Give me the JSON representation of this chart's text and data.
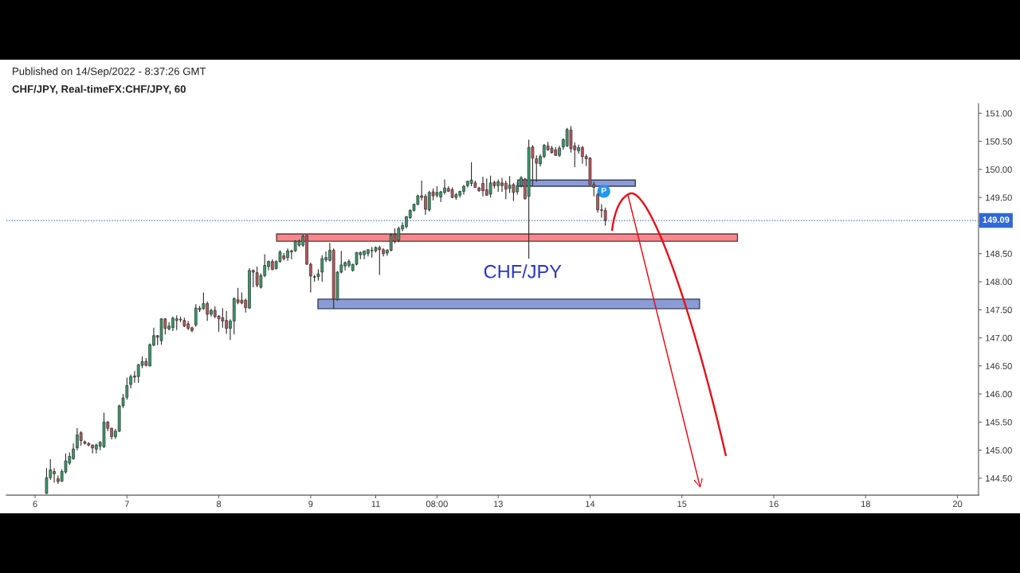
{
  "chart_data": {
    "type": "candlestick",
    "title": "CHF/JPY, Real-timeFX:CHF/JPY, 60",
    "subtitle": "Published on 14/Sep/2022 - 8:37:26 GMT",
    "categories": [
      null,
      null,
      null,
      null,
      null,
      null,
      null,
      "6",
      null,
      null,
      null,
      null,
      null,
      null,
      null,
      null,
      null,
      null,
      null,
      null,
      null,
      null,
      null,
      null,
      null,
      null,
      null,
      null,
      null,
      null,
      null,
      "7",
      null,
      null,
      null,
      null,
      null,
      null,
      null,
      null,
      null,
      null,
      null,
      null,
      null,
      null,
      null,
      null,
      null,
      null,
      null,
      null,
      null,
      null,
      null,
      "8",
      null,
      null,
      null,
      null,
      null,
      null,
      null,
      null,
      null,
      null,
      null,
      null,
      null,
      null,
      null,
      null,
      null,
      null,
      null,
      null,
      null,
      null,
      null,
      "9",
      null,
      null,
      null,
      null,
      null,
      null,
      null,
      null,
      null,
      null,
      null,
      null,
      null,
      null,
      null,
      null,
      "11",
      null,
      null,
      null,
      null,
      null,
      null,
      null,
      null,
      null,
      null,
      null,
      null,
      null,
      null,
      null,
      "08:00",
      null,
      null,
      null,
      null,
      null,
      null,
      null,
      null,
      null,
      null,
      null,
      null,
      null,
      null,
      null,
      "13",
      null,
      null,
      null,
      null,
      null,
      null,
      null,
      null,
      null,
      null,
      null,
      null,
      null,
      null,
      null,
      null,
      null,
      null,
      null,
      null,
      null,
      null,
      null,
      "14",
      null,
      null,
      null,
      null,
      null,
      null,
      null,
      null,
      null,
      null,
      null,
      null,
      null,
      null,
      null,
      null,
      null,
      null,
      null,
      null,
      null,
      null,
      null,
      "15",
      null,
      null,
      null,
      null,
      null,
      null,
      null,
      null,
      null,
      null,
      null,
      null,
      null,
      null,
      null,
      null,
      null,
      null,
      null,
      null,
      null,
      null,
      null,
      "16",
      null,
      null,
      null,
      null,
      null,
      null,
      null,
      null,
      null,
      null,
      null,
      null,
      null,
      null,
      null,
      null,
      null,
      null,
      null,
      null,
      null,
      null,
      null,
      "18",
      null,
      null,
      null,
      null,
      null,
      null,
      null,
      null,
      null,
      null,
      null,
      null,
      null,
      null,
      null,
      null,
      null,
      null,
      null,
      null,
      null,
      null,
      null,
      "20",
      null,
      null,
      null,
      null,
      null
    ],
    "ohlc": [
      null,
      null,
      null,
      null,
      null,
      null,
      null,
      null,
      null,
      null,
      [
        144.23,
        144.68,
        144.22,
        144.51
      ],
      [
        144.51,
        144.84,
        144.47,
        144.65
      ],
      [
        144.62,
        144.68,
        144.42,
        144.58
      ],
      [
        144.49,
        144.55,
        144.4,
        144.44
      ],
      [
        144.45,
        144.66,
        144.43,
        144.62
      ],
      [
        144.61,
        144.94,
        144.58,
        144.81
      ],
      [
        144.77,
        144.96,
        144.74,
        144.89
      ],
      [
        144.85,
        145.12,
        144.83,
        145.02
      ],
      [
        145.04,
        145.39,
        145.0,
        145.27
      ],
      [
        145.31,
        145.34,
        145.08,
        145.17
      ],
      [
        145.15,
        145.17,
        145.1,
        145.12
      ],
      [
        145.12,
        145.14,
        145.07,
        145.09
      ],
      [
        145.09,
        145.1,
        144.94,
        145.04
      ],
      [
        145.02,
        145.12,
        144.94,
        145.09
      ],
      [
        145.07,
        145.16,
        145.0,
        145.14
      ],
      [
        145.06,
        145.67,
        145.04,
        145.5
      ],
      [
        145.5,
        145.52,
        145.34,
        145.39
      ],
      [
        145.39,
        145.4,
        145.19,
        145.24
      ],
      [
        145.24,
        145.38,
        145.2,
        145.34
      ],
      [
        145.34,
        145.81,
        145.32,
        145.79
      ],
      [
        145.79,
        146.0,
        145.75,
        145.93
      ],
      [
        145.94,
        146.29,
        145.9,
        146.15
      ],
      [
        146.17,
        146.35,
        146.1,
        146.31
      ],
      [
        146.3,
        146.41,
        146.2,
        146.32
      ],
      [
        146.31,
        146.54,
        146.2,
        146.52
      ],
      [
        146.51,
        146.67,
        146.46,
        146.58
      ],
      [
        146.58,
        146.64,
        146.49,
        146.51
      ],
      [
        146.5,
        146.9,
        146.49,
        146.88
      ],
      [
        146.87,
        147.18,
        146.85,
        147.04
      ],
      [
        147.04,
        147.05,
        146.87,
        147.01
      ],
      [
        146.95,
        147.35,
        146.88,
        147.34
      ],
      [
        147.34,
        147.35,
        147.06,
        147.17
      ],
      [
        147.16,
        147.28,
        147.13,
        147.21
      ],
      [
        147.18,
        147.38,
        147.12,
        147.35
      ],
      [
        147.34,
        147.4,
        147.14,
        147.31
      ],
      [
        147.32,
        147.38,
        147.28,
        147.33
      ],
      [
        147.31,
        147.36,
        147.19,
        147.21
      ],
      [
        147.25,
        147.3,
        147.14,
        147.17
      ],
      [
        147.18,
        147.2,
        147.1,
        147.13
      ],
      [
        147.23,
        147.6,
        147.2,
        147.53
      ],
      [
        147.53,
        147.57,
        147.46,
        147.5
      ],
      [
        147.52,
        147.81,
        147.5,
        147.61
      ],
      [
        147.61,
        147.65,
        147.3,
        147.42
      ],
      [
        147.42,
        147.52,
        147.38,
        147.49
      ],
      [
        147.49,
        147.56,
        147.35,
        147.38
      ],
      [
        147.39,
        147.4,
        147.11,
        147.34
      ],
      [
        147.36,
        147.53,
        147.18,
        147.3
      ],
      [
        147.31,
        147.48,
        147.07,
        147.17
      ],
      [
        147.17,
        147.33,
        146.96,
        147.3
      ],
      [
        147.3,
        147.72,
        147.06,
        147.7
      ],
      [
        147.68,
        147.89,
        147.6,
        147.63
      ],
      [
        147.67,
        147.81,
        147.6,
        147.62
      ],
      [
        147.67,
        147.7,
        147.45,
        147.54
      ],
      [
        147.53,
        148.24,
        147.52,
        148.2
      ],
      [
        148.2,
        148.22,
        147.9,
        148.17
      ],
      [
        148.16,
        148.27,
        147.9,
        147.94
      ],
      [
        147.9,
        148.15,
        147.88,
        148.11
      ],
      [
        148.11,
        148.49,
        148.08,
        148.29
      ],
      [
        148.27,
        148.38,
        148.2,
        148.36
      ],
      [
        148.36,
        148.4,
        148.2,
        148.22
      ],
      [
        148.23,
        148.38,
        148.22,
        148.36
      ],
      [
        148.36,
        148.56,
        148.34,
        148.53
      ],
      [
        148.46,
        148.51,
        148.38,
        148.41
      ],
      [
        148.43,
        148.59,
        148.37,
        148.55
      ],
      [
        148.53,
        148.57,
        148.4,
        148.55
      ],
      [
        148.55,
        148.74,
        148.53,
        148.72
      ],
      [
        148.65,
        148.75,
        148.62,
        148.72
      ],
      [
        148.65,
        148.84,
        148.62,
        148.81
      ],
      [
        148.82,
        148.84,
        148.3,
        148.31
      ],
      [
        148.31,
        148.34,
        147.81,
        148.1
      ],
      [
        148.08,
        148.12,
        148.0,
        148.09
      ],
      [
        148.09,
        148.22,
        148.02,
        148.14
      ],
      [
        148.17,
        148.47,
        148.0,
        148.41
      ],
      [
        148.39,
        148.54,
        148.35,
        148.43
      ],
      [
        148.38,
        148.69,
        148.36,
        148.56
      ],
      [
        148.56,
        148.59,
        147.52,
        147.69
      ],
      [
        147.68,
        148.19,
        147.66,
        148.17
      ],
      [
        148.17,
        148.55,
        148.15,
        148.3
      ],
      [
        148.28,
        148.36,
        148.2,
        148.34
      ],
      [
        148.29,
        148.4,
        148.25,
        148.36
      ],
      [
        148.2,
        148.32,
        148.18,
        148.31
      ],
      [
        148.31,
        148.53,
        148.29,
        148.52
      ],
      [
        148.48,
        148.54,
        148.4,
        148.52
      ],
      [
        148.48,
        148.55,
        148.4,
        148.55
      ],
      [
        148.5,
        148.58,
        148.45,
        148.57
      ],
      [
        148.55,
        148.62,
        148.43,
        148.56
      ],
      [
        148.55,
        148.63,
        148.52,
        148.61
      ],
      [
        148.61,
        148.64,
        148.12,
        148.57
      ],
      [
        148.57,
        148.6,
        148.45,
        148.5
      ],
      [
        148.51,
        148.58,
        148.46,
        148.56
      ],
      [
        148.56,
        148.86,
        148.54,
        148.83
      ],
      [
        148.84,
        148.95,
        148.68,
        148.72
      ],
      [
        148.74,
        148.98,
        148.7,
        148.95
      ],
      [
        148.94,
        149.06,
        148.9,
        149.0
      ],
      [
        148.98,
        149.17,
        148.95,
        149.16
      ],
      [
        149.14,
        149.29,
        149.12,
        149.27
      ],
      [
        149.27,
        149.39,
        149.25,
        149.38
      ],
      [
        149.38,
        149.55,
        149.36,
        149.53
      ],
      [
        149.53,
        149.8,
        149.45,
        149.5
      ],
      [
        149.52,
        149.56,
        149.19,
        149.29
      ],
      [
        149.28,
        149.62,
        149.25,
        149.59
      ],
      [
        149.6,
        149.66,
        149.45,
        149.53
      ],
      [
        149.54,
        149.7,
        149.5,
        149.59
      ],
      [
        149.51,
        149.62,
        149.42,
        149.6
      ],
      [
        149.59,
        149.82,
        149.55,
        149.67
      ],
      [
        149.66,
        149.7,
        149.6,
        149.61
      ],
      [
        149.64,
        149.68,
        149.49,
        149.5
      ],
      [
        149.5,
        149.58,
        149.46,
        149.55
      ],
      [
        149.54,
        149.62,
        149.5,
        149.61
      ],
      [
        149.61,
        149.72,
        149.55,
        149.7
      ],
      [
        149.71,
        149.8,
        149.68,
        149.79
      ],
      [
        149.75,
        150.13,
        149.7,
        149.81
      ],
      [
        149.76,
        149.8,
        149.68,
        149.68
      ],
      [
        149.67,
        149.69,
        149.6,
        149.62
      ],
      [
        149.75,
        149.87,
        149.52,
        149.62
      ],
      [
        149.64,
        149.84,
        149.53,
        149.54
      ],
      [
        149.56,
        149.89,
        149.5,
        149.76
      ],
      [
        149.77,
        149.8,
        149.66,
        149.71
      ],
      [
        149.71,
        149.82,
        149.6,
        149.78
      ],
      [
        149.76,
        149.85,
        149.6,
        149.71
      ],
      [
        149.75,
        149.8,
        149.47,
        149.65
      ],
      [
        149.66,
        149.88,
        149.58,
        149.72
      ],
      [
        149.73,
        149.76,
        149.44,
        149.59
      ],
      [
        149.6,
        149.78,
        149.55,
        149.71
      ],
      [
        149.71,
        149.88,
        149.68,
        149.85
      ],
      [
        149.83,
        149.85,
        149.46,
        149.48
      ],
      [
        149.52,
        150.53,
        148.41,
        150.39
      ],
      [
        150.4,
        150.43,
        149.7,
        150.2
      ],
      [
        150.19,
        150.25,
        149.78,
        150.11
      ],
      [
        150.1,
        150.27,
        150.05,
        150.23
      ],
      [
        150.23,
        150.45,
        150.2,
        150.43
      ],
      [
        150.42,
        150.49,
        150.33,
        150.35
      ],
      [
        150.38,
        150.42,
        150.28,
        150.3
      ],
      [
        150.35,
        150.4,
        150.24,
        150.25
      ],
      [
        150.25,
        150.42,
        150.22,
        150.38
      ],
      [
        150.4,
        150.55,
        150.35,
        150.53
      ],
      [
        150.42,
        150.74,
        150.4,
        150.71
      ],
      [
        150.7,
        150.77,
        150.3,
        150.37
      ],
      [
        150.42,
        150.48,
        150.04,
        150.35
      ],
      [
        150.33,
        150.44,
        150.28,
        150.39
      ],
      [
        150.39,
        150.42,
        150.1,
        150.23
      ],
      [
        150.23,
        150.27,
        150.06,
        150.19
      ],
      [
        150.2,
        150.22,
        149.72,
        149.73
      ],
      [
        149.73,
        149.78,
        149.52,
        149.68
      ],
      [
        149.55,
        149.58,
        149.23,
        149.28
      ],
      [
        149.28,
        149.38,
        149.14,
        149.27
      ],
      [
        149.27,
        149.32,
        149.0,
        149.09
      ],
      null,
      null,
      null,
      null,
      null,
      null,
      null,
      null,
      null,
      null,
      null,
      null,
      null,
      null,
      null,
      null,
      null,
      null,
      null,
      null,
      null,
      null,
      null,
      null,
      null,
      null,
      null,
      null,
      null,
      null,
      null,
      null,
      null,
      null,
      null,
      null,
      null,
      null,
      null,
      null,
      null,
      null,
      null,
      null,
      null,
      null,
      null,
      null,
      null,
      null,
      null,
      null,
      null,
      null,
      null,
      null,
      null,
      null,
      null,
      null,
      null,
      null,
      null,
      null,
      null,
      null,
      null,
      null,
      null,
      null,
      null,
      null,
      null,
      null,
      null,
      null,
      null,
      null,
      null,
      null,
      null,
      null,
      null,
      null,
      null,
      null,
      null,
      null,
      null,
      null,
      null,
      null,
      null,
      null,
      null,
      null,
      null
    ],
    "colors": [
      null,
      null,
      null,
      null,
      null,
      null,
      null,
      null,
      null,
      null,
      "#3a9a6a",
      "#3a9a6a",
      "#b9575a",
      "#b9575a",
      "#3a9a6a",
      "#3a9a6a",
      "#3a9a6a",
      "#3a9a6a",
      "#3a9a6a",
      "#b9575a",
      "#b9575a",
      "#b9575a",
      "#b9575a",
      "#3a9a6a",
      "#3a9a6a",
      "#3a9a6a",
      "#b9575a",
      "#b9575a",
      "#3a9a6a",
      "#3a9a6a",
      "#3a9a6a",
      "#3a9a6a",
      "#3a9a6a",
      "#3a9a6a",
      "#3a9a6a",
      "#3a9a6a",
      "#b9575a",
      "#3a9a6a",
      "#3a9a6a",
      "#b9575a",
      "#3a9a6a",
      "#b9575a",
      "#3a9a6a",
      "#3a9a6a",
      "#b9575a",
      "#3a9a6a",
      "#b9575a",
      "#b9575a",
      "#b9575a",
      "#3a9a6a",
      "#b9575a",
      "#3a9a6a",
      "#b9575a",
      "#3a9a6a",
      "#b9575a",
      "#b9575a",
      "#b9575a",
      "#b9575a",
      "#3a9a6a",
      "#3a9a6a",
      "#b9575a",
      "#b9575a",
      "#b9575a",
      "#3a9a6a",
      "#b9575a",
      "#b9575a",
      "#3a9a6a",
      "#3a9a6a",
      "#3a9a6a",
      "#b9575a",
      "#3a9a6a",
      "#3a9a6a",
      "#b9575a",
      "#3a9a6a",
      "#3a9a6a",
      "#3a9a6a",
      "#3a9a6a",
      "#3a9a6a",
      "#b9575a",
      "#b9575a",
      "#3a9a6a",
      "#3a9a6a",
      "#3a9a6a",
      "#3a9a6a",
      "#3a9a6a",
      "#b9575a",
      "#3a9a6a",
      "#3a9a6a",
      "#3a9a6a",
      "#3a9a6a",
      "#3a9a6a",
      "#3a9a6a",
      "#3a9a6a",
      "#3a9a6a",
      "#3a9a6a",
      "#3a9a6a",
      "#3a9a6a",
      "#b9575a",
      "#b9575a",
      "#3a9a6a",
      "#3a9a6a",
      "#b9575a",
      "#3a9a6a",
      "#3a9a6a",
      "#3a9a6a",
      "#3a9a6a",
      "#3a9a6a",
      "#3a9a6a",
      "#b9575a",
      "#b9575a",
      "#3a9a6a",
      "#b9575a",
      "#3a9a6a",
      "#3a9a6a",
      "#3a9a6a",
      "#b9575a",
      "#b9575a",
      "#3a9a6a",
      "#3a9a6a",
      "#3a9a6a",
      "#3a9a6a",
      "#3a9a6a",
      "#b9575a",
      "#b9575a",
      "#b9575a",
      "#b9575a",
      "#3a9a6a",
      "#b9575a",
      "#3a9a6a",
      "#b9575a",
      "#b9575a",
      "#3a9a6a",
      "#b9575a",
      "#3a9a6a",
      "#3a9a6a",
      "#b9575a",
      "#3a9a6a",
      "#b9575a",
      "#b9575a",
      "#3a9a6a",
      "#3a9a6a",
      "#b9575a",
      "#b9575a",
      "#b9575a",
      "#3a9a6a",
      "#3a9a6a",
      "#3a9a6a",
      "#b9575a",
      "#b9575a",
      "#3a9a6a",
      "#b9575a",
      "#b9575a",
      "#b9575a",
      "#b9575a",
      "#b9575a",
      "#b9575a",
      "#b9575a",
      null,
      null,
      null,
      null,
      null,
      null,
      null,
      null,
      null,
      null,
      null,
      null,
      null,
      null,
      null,
      null,
      null,
      null,
      null,
      null,
      null,
      null,
      null,
      null,
      null,
      null,
      null,
      null,
      null,
      null,
      null,
      null,
      null,
      null,
      null,
      null,
      null,
      null,
      null,
      null,
      null,
      null,
      null,
      null,
      null,
      null,
      null,
      null,
      null,
      null,
      null,
      null,
      null,
      null,
      null,
      null,
      null,
      null,
      null,
      null,
      null,
      null,
      null,
      null,
      null,
      null,
      null,
      null,
      null,
      null,
      null,
      null,
      null,
      null,
      null,
      null,
      null,
      null,
      null,
      null,
      null,
      null,
      null,
      null,
      null,
      null,
      null,
      null,
      null,
      null,
      null,
      null,
      null,
      null,
      null,
      null,
      null
    ],
    "ylim": [
      144.2,
      151.17
    ],
    "yticks": [
      {
        "value": 144.5,
        "label": "144.50"
      },
      {
        "value": 145,
        "label": "145.00"
      },
      {
        "value": 145.5,
        "label": "145.50"
      },
      {
        "value": 146,
        "label": "146.00"
      },
      {
        "value": 146.5,
        "label": "146.50"
      },
      {
        "value": 147,
        "label": "147.00"
      },
      {
        "value": 147.5,
        "label": "147.50"
      },
      {
        "value": 148,
        "label": "148.00"
      },
      {
        "value": 148.5,
        "label": "148.50"
      },
      {
        "value": 149,
        "label": null
      },
      {
        "value": 149.5,
        "label": "149.50"
      },
      {
        "value": 150,
        "label": "150.00"
      },
      {
        "value": 150.5,
        "label": "150.50"
      },
      {
        "value": 151,
        "label": "151.00"
      }
    ],
    "ref_lines": [
      {
        "axis": "y",
        "value": 149.09,
        "label": "149.09",
        "color": "#3068d6",
        "line_style": "dotted"
      }
    ],
    "bands": [
      {
        "axis": "y",
        "from": 148.72,
        "to": 148.85,
        "color": "#f7878d"
      },
      {
        "axis": "y",
        "from": 149.7,
        "to": 149.81,
        "color": "#8a9bd6"
      },
      {
        "axis": "y",
        "from": 147.52,
        "to": 147.69,
        "color": "#8a9bd6"
      }
    ],
    "annotations": [
      "CHF/JPY",
      {
        "text": "P",
        "y": 149.61
      }
    ]
  }
}
